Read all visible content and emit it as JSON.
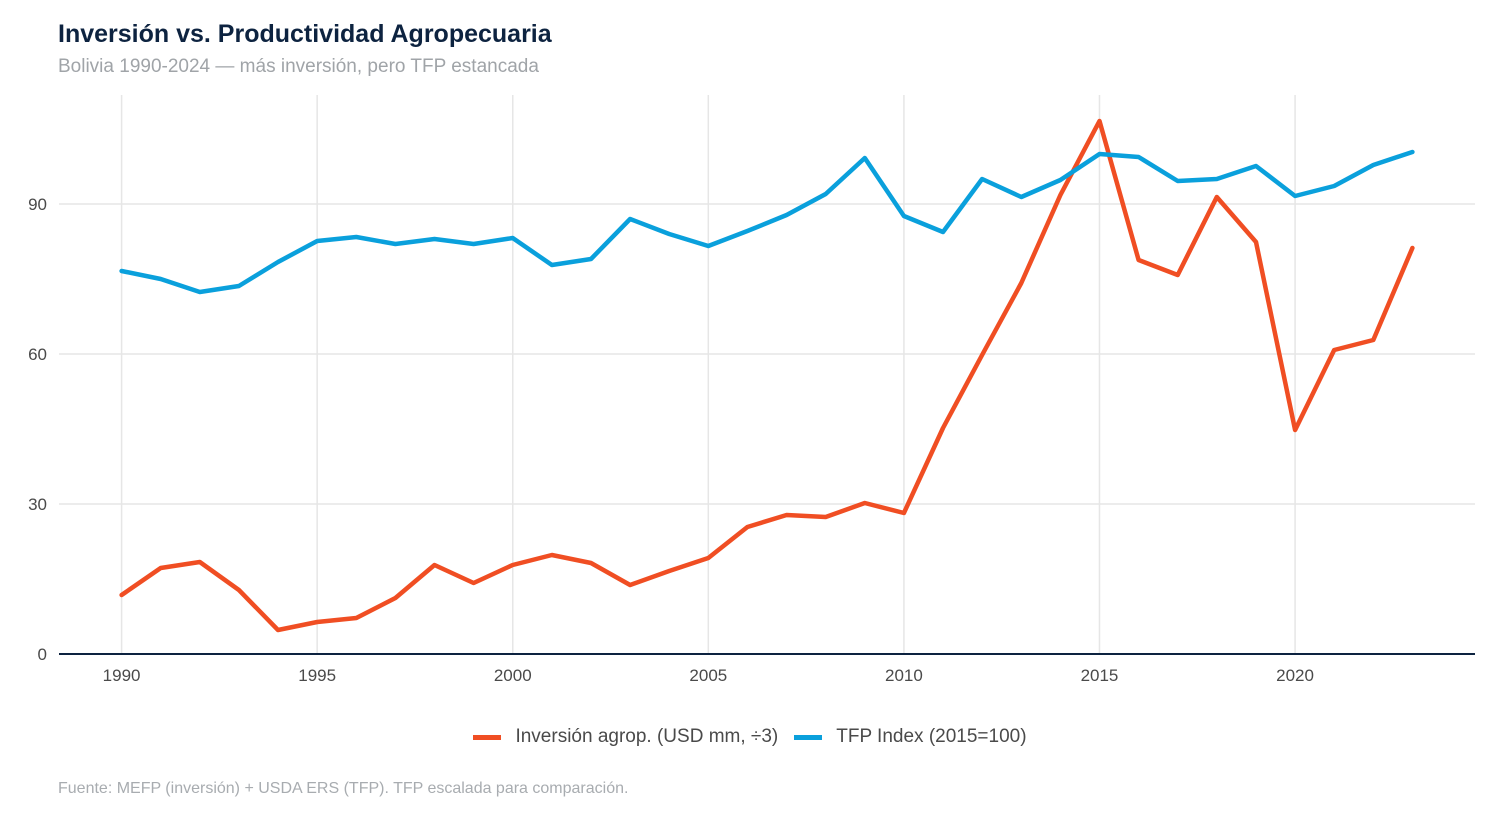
{
  "chart_data": {
    "type": "line",
    "title": "Inversión vs. Productividad Agropecuaria",
    "subtitle": "Bolivia 1990-2024 — más inversión, pero TFP estancada",
    "caption": "Fuente: MEFP (inversión) + USDA ERS (TFP). TFP escalada para comparación.",
    "xlabel": "",
    "ylabel": "",
    "xlim": [
      1988.4,
      2024.6
    ],
    "ylim": [
      0,
      110
    ],
    "x_ticks": [
      1990,
      1995,
      2000,
      2005,
      2010,
      2015,
      2020
    ],
    "y_ticks": [
      0,
      30,
      60,
      90
    ],
    "grid": true,
    "legend_position": "bottom",
    "x": [
      1990,
      1991,
      1992,
      1993,
      1994,
      1995,
      1996,
      1997,
      1998,
      1999,
      2000,
      2001,
      2002,
      2003,
      2004,
      2005,
      2006,
      2007,
      2008,
      2009,
      2010,
      2011,
      2012,
      2013,
      2014,
      2015,
      2016,
      2017,
      2018,
      2019,
      2020,
      2021,
      2022,
      2023
    ],
    "series": [
      {
        "name": "Inversión agrop. (USD mm, ÷3)",
        "color": "#f04e23",
        "values": [
          11.8,
          17.2,
          18.4,
          12.8,
          4.8,
          6.4,
          7.2,
          11.2,
          17.8,
          14.2,
          17.8,
          19.8,
          18.2,
          13.8,
          16.6,
          19.2,
          25.4,
          27.8,
          27.4,
          30.2,
          28.2,
          45.2,
          59.8,
          74.2,
          91.8,
          106.6,
          78.8,
          75.8,
          91.4,
          82.4,
          44.8,
          60.8,
          62.8,
          81.2
        ]
      },
      {
        "name": "TFP Index (2015=100)",
        "color": "#0aa0dc",
        "values": [
          76.6,
          75.0,
          72.4,
          73.6,
          78.4,
          82.6,
          83.4,
          82.0,
          83.0,
          82.0,
          83.2,
          77.8,
          79.0,
          87.0,
          84.0,
          81.6,
          84.6,
          87.8,
          92.0,
          99.2,
          87.6,
          84.4,
          95.0,
          91.4,
          94.8,
          100.0,
          99.4,
          94.6,
          95.0,
          97.6,
          91.6,
          93.6,
          97.8,
          100.4
        ]
      }
    ]
  }
}
